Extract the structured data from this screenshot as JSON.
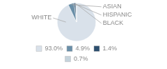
{
  "chart_data": {
    "type": "pie",
    "categories": [
      "WHITE",
      "ASIAN",
      "HISPANIC",
      "BLACK"
    ],
    "values": [
      93.0,
      4.9,
      1.4,
      0.7
    ],
    "value_labels": [
      "93.0%",
      "4.9%",
      "1.4%",
      "0.7%"
    ],
    "colors": [
      "#d9e1ea",
      "#6a8fa8",
      "#2d4f6e",
      "#c5d3dc"
    ],
    "legend": "bottom"
  }
}
